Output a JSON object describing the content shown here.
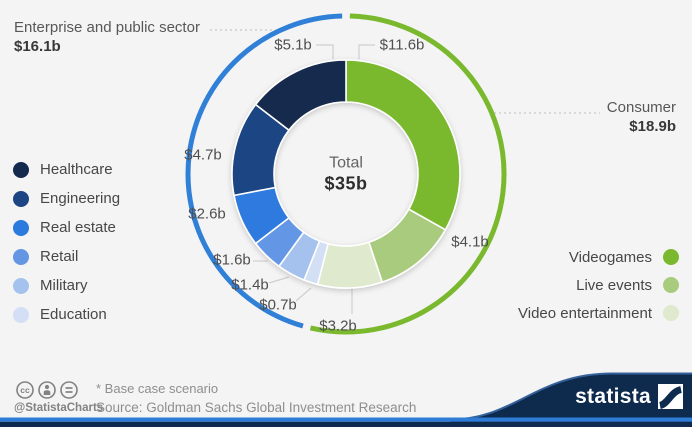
{
  "chart_data": {
    "type": "donut",
    "center": {
      "label": "Total",
      "value": "$35b"
    },
    "total_value": 35,
    "segments": [
      {
        "name": "Videogames",
        "value": 11.6,
        "label": "$11.6b",
        "color": "#7ab82e",
        "group": "Consumer"
      },
      {
        "name": "Live events",
        "value": 4.1,
        "label": "$4.1b",
        "color": "#a9cb7d",
        "group": "Consumer"
      },
      {
        "name": "Video entertainment",
        "value": 3.2,
        "label": "$3.2b",
        "color": "#dfe9cd",
        "group": "Consumer"
      },
      {
        "name": "Education",
        "value": 0.7,
        "label": "$0.7b",
        "color": "#d2dff5",
        "group": "Enterprise and public sector"
      },
      {
        "name": "Military",
        "value": 1.4,
        "label": "$1.4b",
        "color": "#a5c2ee",
        "group": "Enterprise and public sector"
      },
      {
        "name": "Retail",
        "value": 1.6,
        "label": "$1.6b",
        "color": "#6496e4",
        "group": "Enterprise and public sector"
      },
      {
        "name": "Real estate",
        "value": 2.6,
        "label": "$2.6b",
        "color": "#2d7ade",
        "group": "Enterprise and public sector"
      },
      {
        "name": "Engineering",
        "value": 4.7,
        "label": "$4.7b",
        "color": "#1d4584",
        "group": "Enterprise and public sector"
      },
      {
        "name": "Healthcare",
        "value": 5.1,
        "label": "$5.1b",
        "color": "#13294e",
        "group": "Enterprise and public sector"
      }
    ],
    "groups": [
      {
        "name": "Consumer",
        "value": 18.9,
        "value_label": "$18.9b",
        "arc_color": "#7ab82e"
      },
      {
        "name": "Enterprise and public sector",
        "value": 16.1,
        "value_label": "$16.1b",
        "arc_color": "#3180d8"
      }
    ],
    "legend_position": "left: enterprise segments, right: consumer segments"
  },
  "footer": {
    "note": "* Base case scenario",
    "source": "Source: Goldman Sachs Global Investment Research",
    "credit": "@StatistaCharts",
    "brand": "statista"
  },
  "colors": {
    "background": "#f4f4f4",
    "footer_navy": "#0e2a4c",
    "footer_blue_strip": "#2e7cd6"
  }
}
